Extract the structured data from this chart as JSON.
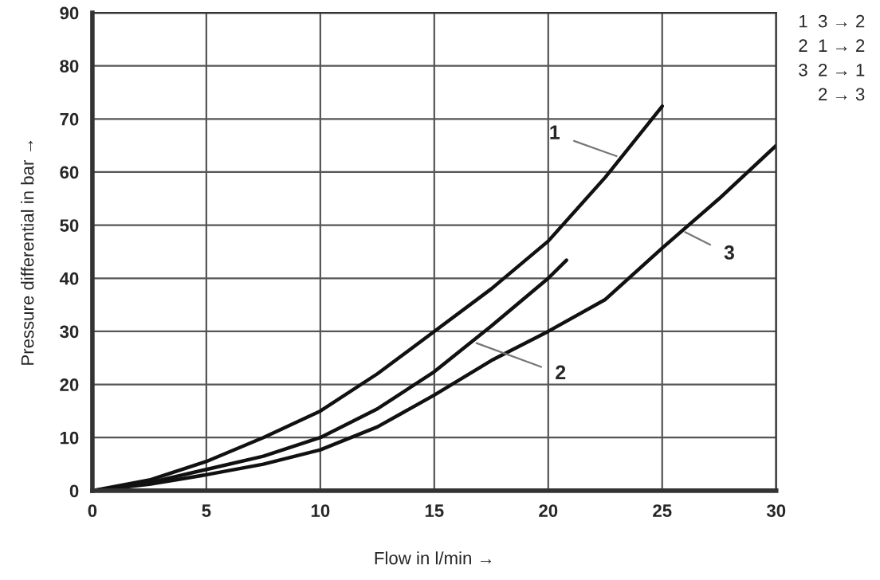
{
  "chart_data": {
    "type": "line",
    "xlabel": "Flow in l/min →",
    "ylabel": "Pressure differential in bar →",
    "xlim": [
      0,
      30
    ],
    "xticks": [
      0,
      5,
      10,
      15,
      20,
      25,
      30
    ],
    "ylim": [
      0,
      90
    ],
    "yticks": [
      0,
      10,
      20,
      30,
      40,
      50,
      60,
      70,
      80,
      90
    ],
    "grid": true,
    "line_style": "solid",
    "marker": "none",
    "series": [
      {
        "color": "#111111",
        "x": [
          0,
          2.5,
          5,
          7.5,
          10,
          12.5,
          15,
          17.5,
          20,
          22.5,
          25
        ],
        "values": [
          0,
          2,
          5.5,
          10,
          15,
          22,
          30,
          38,
          47,
          59,
          72.4
        ]
      },
      {
        "color": "#111111",
        "x": [
          0,
          2.5,
          5,
          7.5,
          10,
          12.5,
          15,
          17.5,
          20,
          20.8
        ],
        "values": [
          0,
          1.5,
          4,
          6.5,
          10,
          15.4,
          22.4,
          31,
          40,
          43.4
        ]
      },
      {
        "color": "#111111",
        "x": [
          0,
          2.5,
          5,
          7.5,
          10,
          12.5,
          15,
          17.5,
          20,
          22.5,
          25,
          27.5,
          30
        ],
        "values": [
          0,
          1.2,
          3,
          5,
          7.7,
          12,
          18,
          24.5,
          30,
          36,
          45.7,
          55,
          65
        ]
      }
    ],
    "annotations": [
      {
        "text": "1",
        "x": 23,
        "y": 63
      },
      {
        "text": "2",
        "x": 16.85,
        "y": 27.8
      },
      {
        "text": "3",
        "x": 26,
        "y": 48.7
      },
      "1  3 → 2",
      "2  1 → 2",
      "3  2 → 1",
      "    2 → 3"
    ]
  }
}
